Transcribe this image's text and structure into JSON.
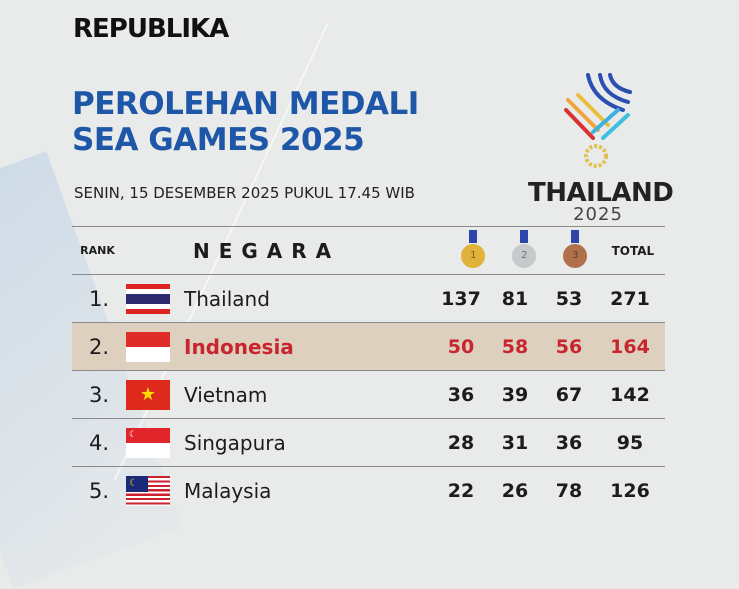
{
  "brand": "REPUBLIKA",
  "title_line1": "PEROLEHAN MEDALI",
  "title_line2": "SEA GAMES 2025",
  "date": "SENIN, 15 DESEMBER 2025 PUKUL 17.45 WIB",
  "logo": {
    "name": "THAILAND",
    "year": "2025"
  },
  "colors": {
    "title": "#1e56a8",
    "highlight_bg": "#ddd0bf",
    "highlight_text": "#c8252e",
    "gold": "#e0b23a",
    "silver": "#c7c9cc",
    "bronze": "#b0704a"
  },
  "header": {
    "rank": "RANK",
    "country": "NEGARA",
    "gold": "1",
    "silver": "2",
    "bronze": "3",
    "total": "TOTAL"
  },
  "rows": [
    {
      "rank": "1.",
      "country": "Thailand",
      "flag": "thailand-flag",
      "gold": "137",
      "silver": "81",
      "bronze": "53",
      "total": "271"
    },
    {
      "rank": "2.",
      "country": "Indonesia",
      "flag": "indonesia-flag",
      "gold": "50",
      "silver": "58",
      "bronze": "56",
      "total": "164",
      "highlight": true
    },
    {
      "rank": "3.",
      "country": "Vietnam",
      "flag": "vietnam-flag",
      "gold": "36",
      "silver": "39",
      "bronze": "67",
      "total": "142"
    },
    {
      "rank": "4.",
      "country": "Singapura",
      "flag": "singapore-flag",
      "gold": "28",
      "silver": "31",
      "bronze": "36",
      "total": "95"
    },
    {
      "rank": "5.",
      "country": "Malaysia",
      "flag": "malaysia-flag",
      "gold": "22",
      "silver": "26",
      "bronze": "78",
      "total": "126"
    }
  ]
}
